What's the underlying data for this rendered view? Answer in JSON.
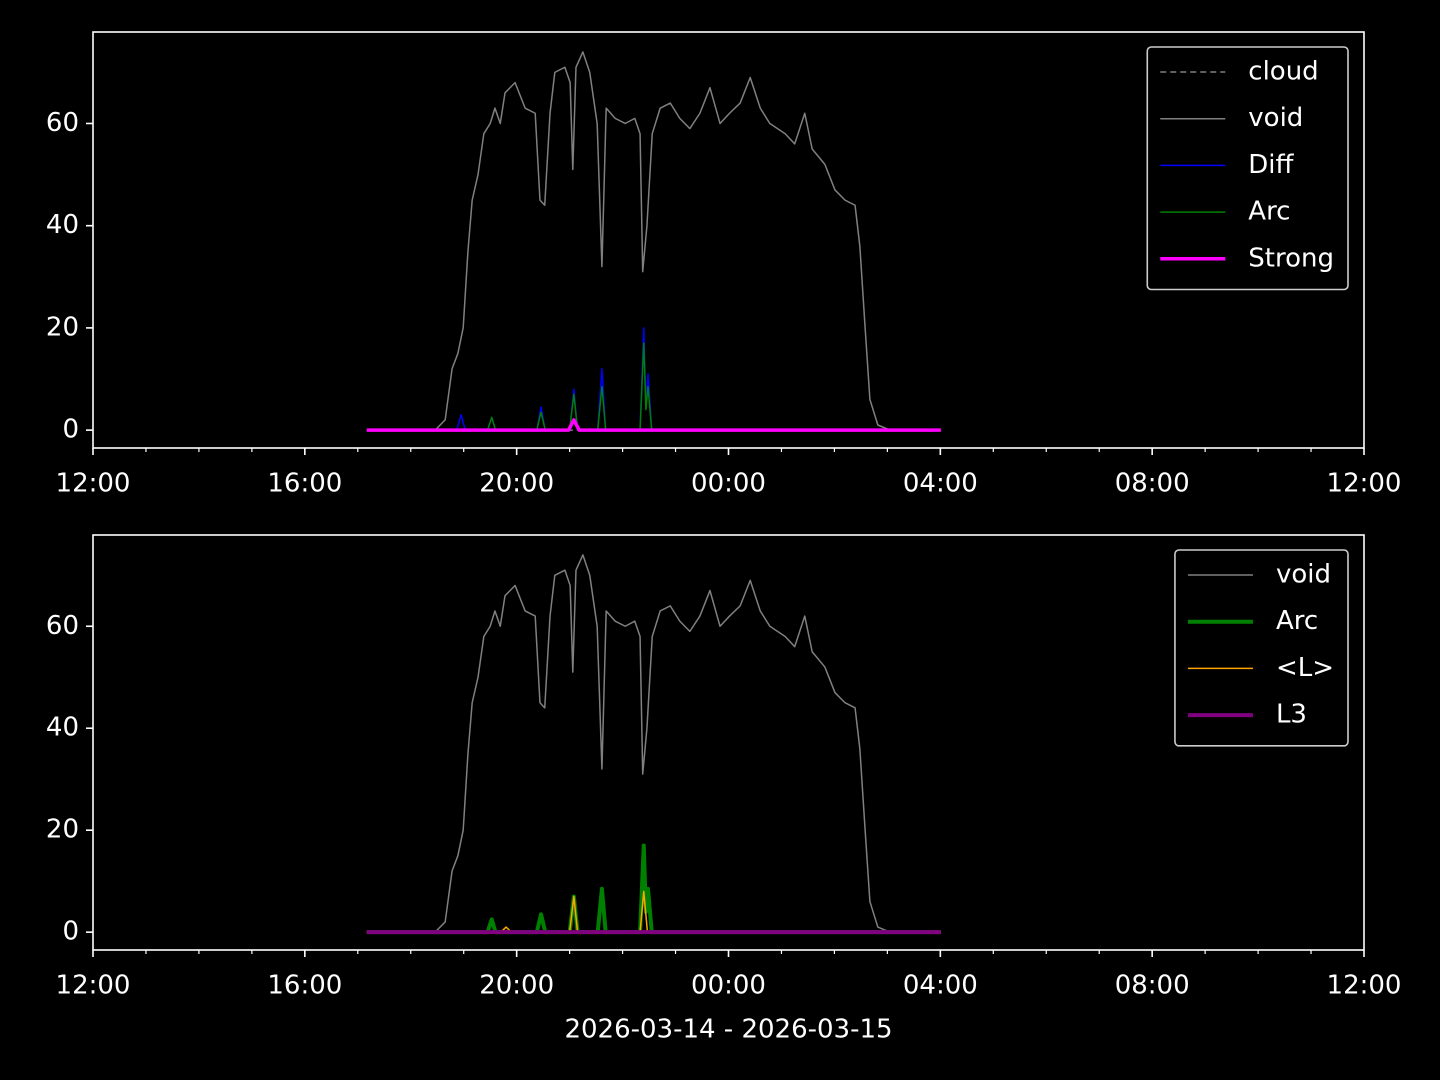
{
  "chart_data": [
    {
      "type": "line",
      "xlim": [
        12,
        36
      ],
      "ylim": [
        -3.5,
        77.9
      ],
      "xticks": [
        {
          "value": 12,
          "label": "12:00"
        },
        {
          "value": 16,
          "label": "16:00"
        },
        {
          "value": 20,
          "label": "20:00"
        },
        {
          "value": 24,
          "label": "00:00"
        },
        {
          "value": 28,
          "label": "04:00"
        },
        {
          "value": 32,
          "label": "08:00"
        },
        {
          "value": 36,
          "label": "12:00"
        }
      ],
      "xminorticks": [
        13,
        14,
        15,
        17,
        18,
        19,
        21,
        22,
        23,
        25,
        26,
        27,
        29,
        30,
        31,
        33,
        34,
        35
      ],
      "yticks": [
        0,
        20,
        40,
        60
      ],
      "legend": "upper right",
      "series": [
        {
          "name": "cloud",
          "color": "#808080",
          "linewidth": 1.5,
          "dash": "dashed",
          "x": [
            17.17,
            28.01
          ],
          "values": [
            0,
            0
          ]
        },
        {
          "name": "void",
          "color": "#808080",
          "linewidth": 1.5,
          "x": [
            17.17,
            18.46,
            18.65,
            18.78,
            18.89,
            18.99,
            19.08,
            19.16,
            19.27,
            19.38,
            19.5,
            19.59,
            19.69,
            19.78,
            19.97,
            20.16,
            20.35,
            20.44,
            20.53,
            20.63,
            20.72,
            20.91,
            21.01,
            21.06,
            21.12,
            21.25,
            21.38,
            21.52,
            21.61,
            21.69,
            21.86,
            22.05,
            22.23,
            22.33,
            22.38,
            22.46,
            22.56,
            22.71,
            22.9,
            23.08,
            23.27,
            23.46,
            23.65,
            23.84,
            24.02,
            24.22,
            24.41,
            24.6,
            24.78,
            25.07,
            25.25,
            25.44,
            25.58,
            25.82,
            26.01,
            26.2,
            26.39,
            26.48,
            26.58,
            26.67,
            26.82,
            27.05,
            28.01
          ],
          "values": [
            0,
            0,
            2,
            12,
            15,
            20,
            35,
            45,
            50,
            58,
            60,
            63,
            60,
            66,
            68,
            63,
            62,
            45,
            44,
            62,
            70,
            71,
            68,
            51,
            71,
            74,
            70,
            60,
            32,
            63,
            61,
            60,
            61,
            58,
            31,
            40,
            58,
            63,
            64,
            61,
            59,
            62,
            67,
            60,
            62,
            64,
            69,
            63,
            60,
            58,
            56,
            62,
            55,
            52,
            47,
            45,
            44,
            36,
            20,
            6,
            1,
            0,
            0
          ]
        },
        {
          "name": "Diff",
          "color": "#0000ff",
          "linewidth": 1.5,
          "x": [
            17.17,
            18.87,
            18.95,
            19.03,
            19.45,
            19.53,
            19.6,
            20.38,
            20.46,
            20.54,
            21.0,
            21.08,
            21.15,
            21.53,
            21.61,
            21.68,
            22.33,
            22.4,
            22.44,
            22.48,
            22.55,
            28.01
          ],
          "values": [
            0,
            0,
            3,
            0,
            0,
            2.5,
            0,
            0,
            4.5,
            0,
            0,
            8,
            0,
            0,
            12,
            0,
            0,
            20,
            5,
            11,
            0,
            0
          ]
        },
        {
          "name": "Arc",
          "color": "#008000",
          "linewidth": 1.5,
          "x": [
            17.17,
            18.87,
            18.95,
            19.03,
            19.45,
            19.53,
            19.6,
            20.38,
            20.46,
            20.54,
            21.0,
            21.08,
            21.15,
            21.53,
            21.61,
            21.68,
            22.33,
            22.4,
            22.44,
            22.48,
            22.55,
            28.01
          ],
          "values": [
            0,
            0,
            0,
            0,
            0,
            2.5,
            0,
            0,
            3.5,
            0,
            0,
            7,
            0,
            0,
            8.5,
            0,
            0,
            17,
            4,
            8.5,
            0,
            0
          ]
        },
        {
          "name": "Strong",
          "color": "#ff00ff",
          "linewidth": 3.5,
          "x": [
            17.17,
            20.98,
            21.08,
            21.18,
            28.01
          ],
          "values": [
            0,
            0,
            2,
            0,
            0
          ]
        }
      ]
    },
    {
      "type": "line",
      "xlim": [
        12,
        36
      ],
      "ylim": [
        -3.5,
        77.9
      ],
      "xlabel": "2026-03-14 - 2026-03-15",
      "xticks": [
        {
          "value": 12,
          "label": "12:00"
        },
        {
          "value": 16,
          "label": "16:00"
        },
        {
          "value": 20,
          "label": "20:00"
        },
        {
          "value": 24,
          "label": "00:00"
        },
        {
          "value": 28,
          "label": "04:00"
        },
        {
          "value": 32,
          "label": "08:00"
        },
        {
          "value": 36,
          "label": "12:00"
        }
      ],
      "xminorticks": [
        13,
        14,
        15,
        17,
        18,
        19,
        21,
        22,
        23,
        25,
        26,
        27,
        29,
        30,
        31,
        33,
        34,
        35
      ],
      "yticks": [
        0,
        20,
        40,
        60
      ],
      "legend": "upper right",
      "series": [
        {
          "name": "void",
          "color": "#808080",
          "linewidth": 1.5,
          "x": [
            17.17,
            18.46,
            18.65,
            18.78,
            18.89,
            18.99,
            19.08,
            19.16,
            19.27,
            19.38,
            19.5,
            19.59,
            19.69,
            19.78,
            19.97,
            20.16,
            20.35,
            20.44,
            20.53,
            20.63,
            20.72,
            20.91,
            21.01,
            21.06,
            21.12,
            21.25,
            21.38,
            21.52,
            21.61,
            21.69,
            21.86,
            22.05,
            22.23,
            22.33,
            22.38,
            22.46,
            22.56,
            22.71,
            22.9,
            23.08,
            23.27,
            23.46,
            23.65,
            23.84,
            24.02,
            24.22,
            24.41,
            24.6,
            24.78,
            25.07,
            25.25,
            25.44,
            25.58,
            25.82,
            26.01,
            26.2,
            26.39,
            26.48,
            26.58,
            26.67,
            26.82,
            27.05,
            28.01
          ],
          "values": [
            0,
            0,
            2,
            12,
            15,
            20,
            35,
            45,
            50,
            58,
            60,
            63,
            60,
            66,
            68,
            63,
            62,
            45,
            44,
            62,
            70,
            71,
            68,
            51,
            71,
            74,
            70,
            60,
            32,
            63,
            61,
            60,
            61,
            58,
            31,
            40,
            58,
            63,
            64,
            61,
            59,
            62,
            67,
            60,
            62,
            64,
            69,
            63,
            60,
            58,
            56,
            62,
            55,
            52,
            47,
            45,
            44,
            36,
            20,
            6,
            1,
            0,
            0
          ]
        },
        {
          "name": "Arc",
          "color": "#008000",
          "linewidth": 4,
          "x": [
            17.17,
            18.87,
            18.95,
            19.03,
            19.45,
            19.53,
            19.6,
            20.38,
            20.46,
            20.54,
            21.0,
            21.08,
            21.15,
            21.53,
            21.61,
            21.68,
            22.33,
            22.4,
            22.44,
            22.48,
            22.55,
            28.01
          ],
          "values": [
            0,
            0,
            0,
            0,
            0,
            2.5,
            0,
            0,
            3.5,
            0,
            0,
            7,
            0,
            0,
            8.5,
            0,
            0,
            17,
            4,
            8.5,
            0,
            0
          ]
        },
        {
          "name": "<L>",
          "color": "#ffa500",
          "linewidth": 1.5,
          "x": [
            17.17,
            19.7,
            19.8,
            19.9,
            21.0,
            21.08,
            21.15,
            22.33,
            22.4,
            22.47,
            28.01
          ],
          "values": [
            0,
            0,
            1,
            0,
            0,
            7,
            0,
            0,
            8,
            0,
            0
          ]
        },
        {
          "name": "L3",
          "color": "#800080",
          "linewidth": 4,
          "x": [
            17.17,
            28.01
          ],
          "values": [
            0,
            0
          ]
        }
      ]
    }
  ]
}
